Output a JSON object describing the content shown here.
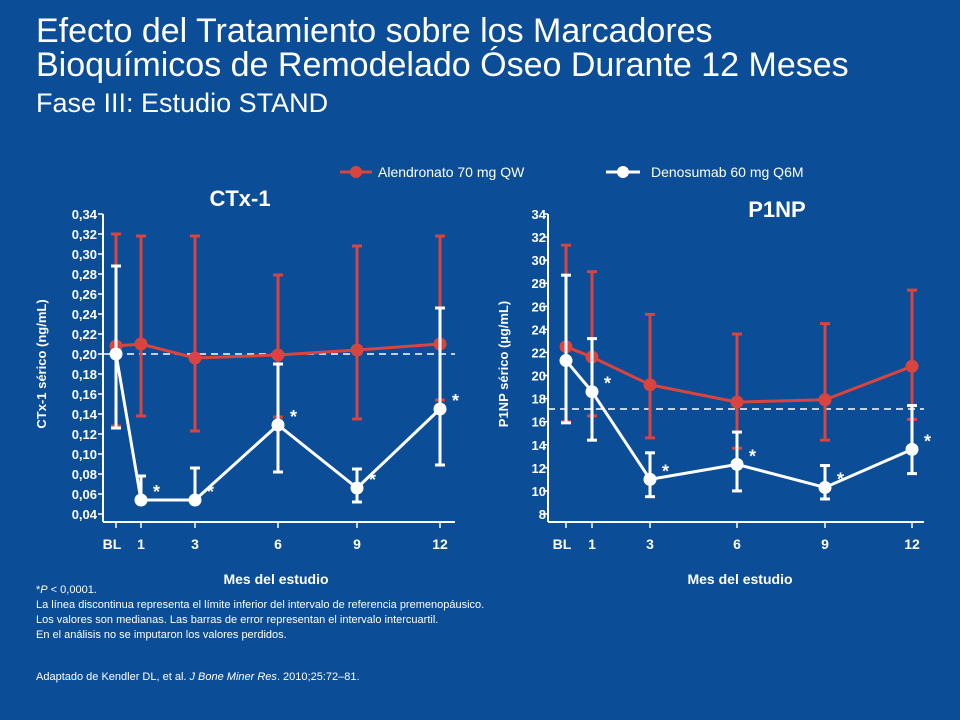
{
  "header": {
    "title_line1": "Efecto del Tratamiento sobre los Marcadores",
    "title_line2": "Bioquímicos de Remodelado Óseo Durante 12 Meses",
    "subtitle": "Fase III: Estudio STAND"
  },
  "legend": {
    "items": [
      {
        "label": "Alendronato 70 mg QW",
        "color": "#d9443e"
      },
      {
        "label": "Denosumab 60 mg Q6M",
        "color": "#ffffff"
      }
    ]
  },
  "chart_data": [
    {
      "type": "line",
      "title": "CTx-1",
      "ylabel": "CTx-1 sérico (ng/mL)",
      "xlabel": "Mes del estudio",
      "x_ticks": [
        "BL",
        "1",
        "3",
        "6",
        "9",
        "12"
      ],
      "x": [
        0,
        1,
        3,
        6,
        9,
        12
      ],
      "ylim": [
        0.04,
        0.34
      ],
      "yticks": [
        "0,04",
        "0,06",
        "0,08",
        "0,10",
        "0,12",
        "0,14",
        "0,16",
        "0,18",
        "0,20",
        "0,22",
        "0,24",
        "0,26",
        "0,28",
        "0,30",
        "0,32",
        "0,34"
      ],
      "ytick_values": [
        0.04,
        0.06,
        0.08,
        0.1,
        0.12,
        0.14,
        0.16,
        0.18,
        0.2,
        0.22,
        0.24,
        0.26,
        0.28,
        0.3,
        0.32,
        0.34
      ],
      "reference_line": 0.2,
      "series": [
        {
          "name": "Alendronato 70 mg QW",
          "color": "#d9443e",
          "values": [
            0.208,
            0.21,
            0.196,
            0.199,
            0.204,
            0.21
          ],
          "err_low": [
            0.128,
            0.138,
            0.123,
            0.137,
            0.135,
            0.154
          ],
          "err_high": [
            0.32,
            0.318,
            0.318,
            0.279,
            0.308,
            0.318
          ]
        },
        {
          "name": "Denosumab 60 mg Q6M",
          "color": "#ffffff",
          "values": [
            0.2,
            0.054,
            0.054,
            0.129,
            0.066,
            0.145
          ],
          "err_low": [
            0.126,
            0.054,
            0.054,
            0.082,
            0.052,
            0.089
          ],
          "err_high": [
            0.288,
            0.078,
            0.086,
            0.19,
            0.085,
            0.246
          ],
          "significant": [
            false,
            true,
            true,
            true,
            true,
            true
          ]
        }
      ]
    },
    {
      "type": "line",
      "title": "P1NP",
      "ylabel": "P1NP sérico (µg/mL)",
      "xlabel": "Mes del estudio",
      "x_ticks": [
        "BL",
        "1",
        "3",
        "6",
        "9",
        "12"
      ],
      "x": [
        0,
        1,
        3,
        6,
        9,
        12
      ],
      "ylim": [
        8,
        34
      ],
      "yticks": [
        "8",
        "10",
        "12",
        "14",
        "16",
        "18",
        "20",
        "22",
        "24",
        "26",
        "28",
        "30",
        "32",
        "34"
      ],
      "ytick_values": [
        8,
        10,
        12,
        14,
        16,
        18,
        20,
        22,
        24,
        26,
        28,
        30,
        32,
        34
      ],
      "reference_line": 17.1,
      "series": [
        {
          "name": "Alendronato 70 mg QW",
          "color": "#d9443e",
          "values": [
            22.5,
            21.6,
            19.2,
            17.7,
            17.9,
            20.8
          ],
          "err_low": [
            16.0,
            16.5,
            14.6,
            13.7,
            14.4,
            16.2
          ],
          "err_high": [
            31.3,
            29.0,
            25.3,
            23.6,
            24.5,
            27.4
          ],
          "significant": [
            false,
            false,
            false,
            false,
            false,
            false
          ]
        },
        {
          "name": "Denosumab 60 mg Q6M",
          "color": "#ffffff",
          "values": [
            21.3,
            18.6,
            11.0,
            12.3,
            10.3,
            13.6
          ],
          "err_low": [
            15.9,
            14.4,
            9.5,
            10.0,
            9.3,
            11.5
          ],
          "err_high": [
            28.7,
            23.2,
            13.3,
            15.1,
            12.2,
            17.4
          ],
          "significant": [
            false,
            true,
            true,
            true,
            true,
            true
          ]
        }
      ]
    }
  ],
  "footnotes": {
    "pvalue_prefix": "*",
    "pvalue_var": "P",
    "pvalue_suffix": " < 0,0001.",
    "line1": "La línea discontinua representa el límite inferior del intervalo de referencia premenopáusico.",
    "line2": "Los valores son medianas. Las barras de error representan el intervalo intercuartil.",
    "line3": "En el análisis no se imputaron los valores perdidos.",
    "ref_prefix": "Adaptado de Kendler DL, et al. ",
    "ref_journal": "J Bone Miner Res",
    "ref_suffix": ". 2010;25:72–81."
  }
}
